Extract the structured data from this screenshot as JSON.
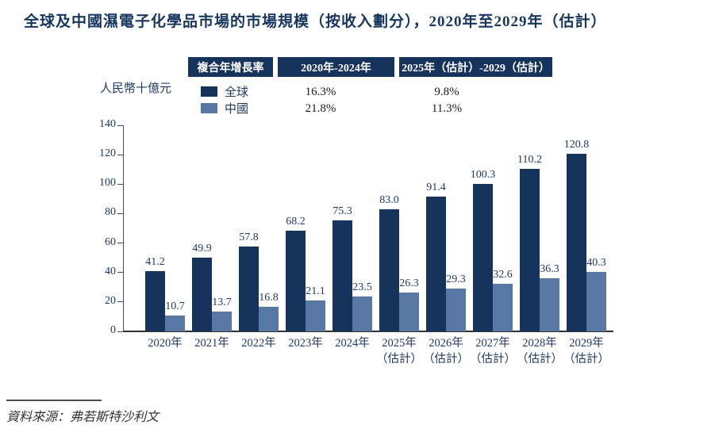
{
  "title": "全球及中國濕電子化學品市場的市場規模（按收入劃分），2020年至2029年（估計）",
  "unit_label": "人民幣十億元",
  "cagr_table": {
    "header": [
      "複合年增長率",
      "2020年-2024年",
      "2025年（估計）-2029（估計）"
    ],
    "rows": [
      {
        "label": "全球",
        "period1": "16.3%",
        "period2": "9.8%"
      },
      {
        "label": "中國",
        "period1": "21.8%",
        "period2": "11.3%"
      }
    ]
  },
  "source": "資料來源：弗若斯特沙利文",
  "colors": {
    "header_bg": "#16335c",
    "global_bar": "#16335c",
    "china_bar": "#5878a3",
    "chart_text": "#1f3864",
    "title_text": "#17365d",
    "axis_line": "#4a4a4a"
  },
  "chart_data": {
    "type": "bar",
    "title": "全球及中國濕電子化學品市場的市場規模（按收入劃分），2020年至2029年（估計）",
    "ylabel": "人民幣十億元",
    "categories": [
      "2020年",
      "2021年",
      "2022年",
      "2023年",
      "2024年",
      "2025年",
      "2026年",
      "2027年",
      "2028年",
      "2029年"
    ],
    "estimated_suffix": "（估計）",
    "estimated_from_index": 5,
    "series": [
      {
        "name": "全球",
        "color": "#16335c",
        "values": [
          41.2,
          49.9,
          57.8,
          68.2,
          75.3,
          83.0,
          91.4,
          100.3,
          110.2,
          120.8
        ]
      },
      {
        "name": "中國",
        "color": "#5878a3",
        "values": [
          10.7,
          13.7,
          16.8,
          21.1,
          23.5,
          26.3,
          29.3,
          32.6,
          36.3,
          40.3
        ]
      }
    ],
    "cagr": [
      {
        "series": "全球",
        "2020-2024": "16.3%",
        "2025-2029": "9.8%"
      },
      {
        "series": "中國",
        "2020-2024": "21.8%",
        "2025-2029": "11.3%"
      }
    ],
    "ylim": [
      0,
      140
    ],
    "ytick_step": 20,
    "grid": false,
    "legend_position": "top-left",
    "value_labels": true
  }
}
